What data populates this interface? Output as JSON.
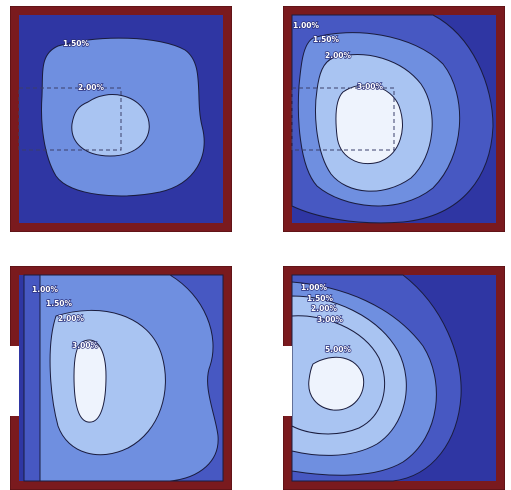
{
  "colors": {
    "wall": "#7a1a1e",
    "wall_edge": "#4a0d10",
    "band_0": "#2f36a3",
    "band_1": "#4758c2",
    "band_2": "#6f8fe0",
    "band_3": "#a9c4f2",
    "band_4": "#eef3fd",
    "dashed": "#3b3f6a"
  },
  "panels": [
    {
      "name": "top-left",
      "labels": [
        "1.50%",
        "2.00%"
      ]
    },
    {
      "name": "top-right",
      "labels": [
        "1.00%",
        "1.50%",
        "2.00%",
        "3.00%"
      ]
    },
    {
      "name": "bottom-left",
      "labels": [
        "1.00%",
        "1.50%",
        "2.00%",
        "3.00%"
      ]
    },
    {
      "name": "bottom-right",
      "labels": [
        "1.00%",
        "1.50%",
        "2.00%",
        "3.00%",
        "5.00%"
      ]
    }
  ]
}
